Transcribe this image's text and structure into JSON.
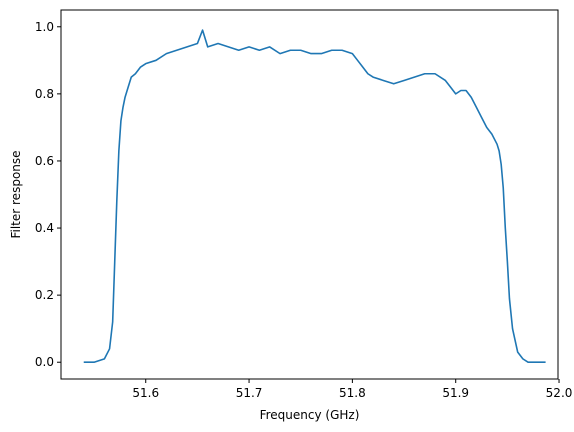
{
  "chart_data": {
    "type": "line",
    "title": "",
    "xlabel": "Frequency (GHz)",
    "ylabel": "Filter response",
    "xlim": [
      51.518,
      51.999
    ],
    "ylim": [
      -0.05,
      1.05
    ],
    "xticks": [
      51.6,
      51.7,
      51.8,
      51.9,
      52.0
    ],
    "xtick_labels": [
      "51.6",
      "51.7",
      "51.8",
      "51.9",
      "52.0"
    ],
    "yticks": [
      0.0,
      0.2,
      0.4,
      0.6,
      0.8,
      1.0
    ],
    "ytick_labels": [
      "0.0",
      "0.2",
      "0.4",
      "0.6",
      "0.8",
      "1.0"
    ],
    "grid": false,
    "legend": "none",
    "series": [
      {
        "color": "#1f77b4",
        "x": [
          51.54,
          51.55,
          51.56,
          51.565,
          51.568,
          51.57,
          51.572,
          51.574,
          51.576,
          51.578,
          51.58,
          51.583,
          51.586,
          51.59,
          51.595,
          51.6,
          51.61,
          51.62,
          51.63,
          51.64,
          51.65,
          51.655,
          51.66,
          51.67,
          51.68,
          51.69,
          51.7,
          51.71,
          51.72,
          51.73,
          51.74,
          51.75,
          51.76,
          51.77,
          51.78,
          51.79,
          51.8,
          51.805,
          51.81,
          51.815,
          51.82,
          51.83,
          51.84,
          51.85,
          51.86,
          51.87,
          51.88,
          51.89,
          51.895,
          51.9,
          51.905,
          51.91,
          51.915,
          51.92,
          51.925,
          51.93,
          51.935,
          51.94,
          51.942,
          51.944,
          51.946,
          51.948,
          51.95,
          51.952,
          51.955,
          51.96,
          51.965,
          51.97,
          51.98,
          51.987
        ],
        "y": [
          0.0,
          0.0,
          0.01,
          0.04,
          0.12,
          0.3,
          0.48,
          0.63,
          0.72,
          0.76,
          0.79,
          0.82,
          0.85,
          0.86,
          0.88,
          0.89,
          0.9,
          0.92,
          0.93,
          0.94,
          0.95,
          0.99,
          0.94,
          0.95,
          0.94,
          0.93,
          0.94,
          0.93,
          0.94,
          0.92,
          0.93,
          0.93,
          0.92,
          0.92,
          0.93,
          0.93,
          0.92,
          0.9,
          0.88,
          0.86,
          0.85,
          0.84,
          0.83,
          0.84,
          0.85,
          0.86,
          0.86,
          0.84,
          0.82,
          0.8,
          0.81,
          0.81,
          0.79,
          0.76,
          0.73,
          0.7,
          0.68,
          0.65,
          0.63,
          0.59,
          0.52,
          0.4,
          0.3,
          0.19,
          0.1,
          0.03,
          0.01,
          0.0,
          0.0,
          0.0
        ]
      }
    ]
  }
}
